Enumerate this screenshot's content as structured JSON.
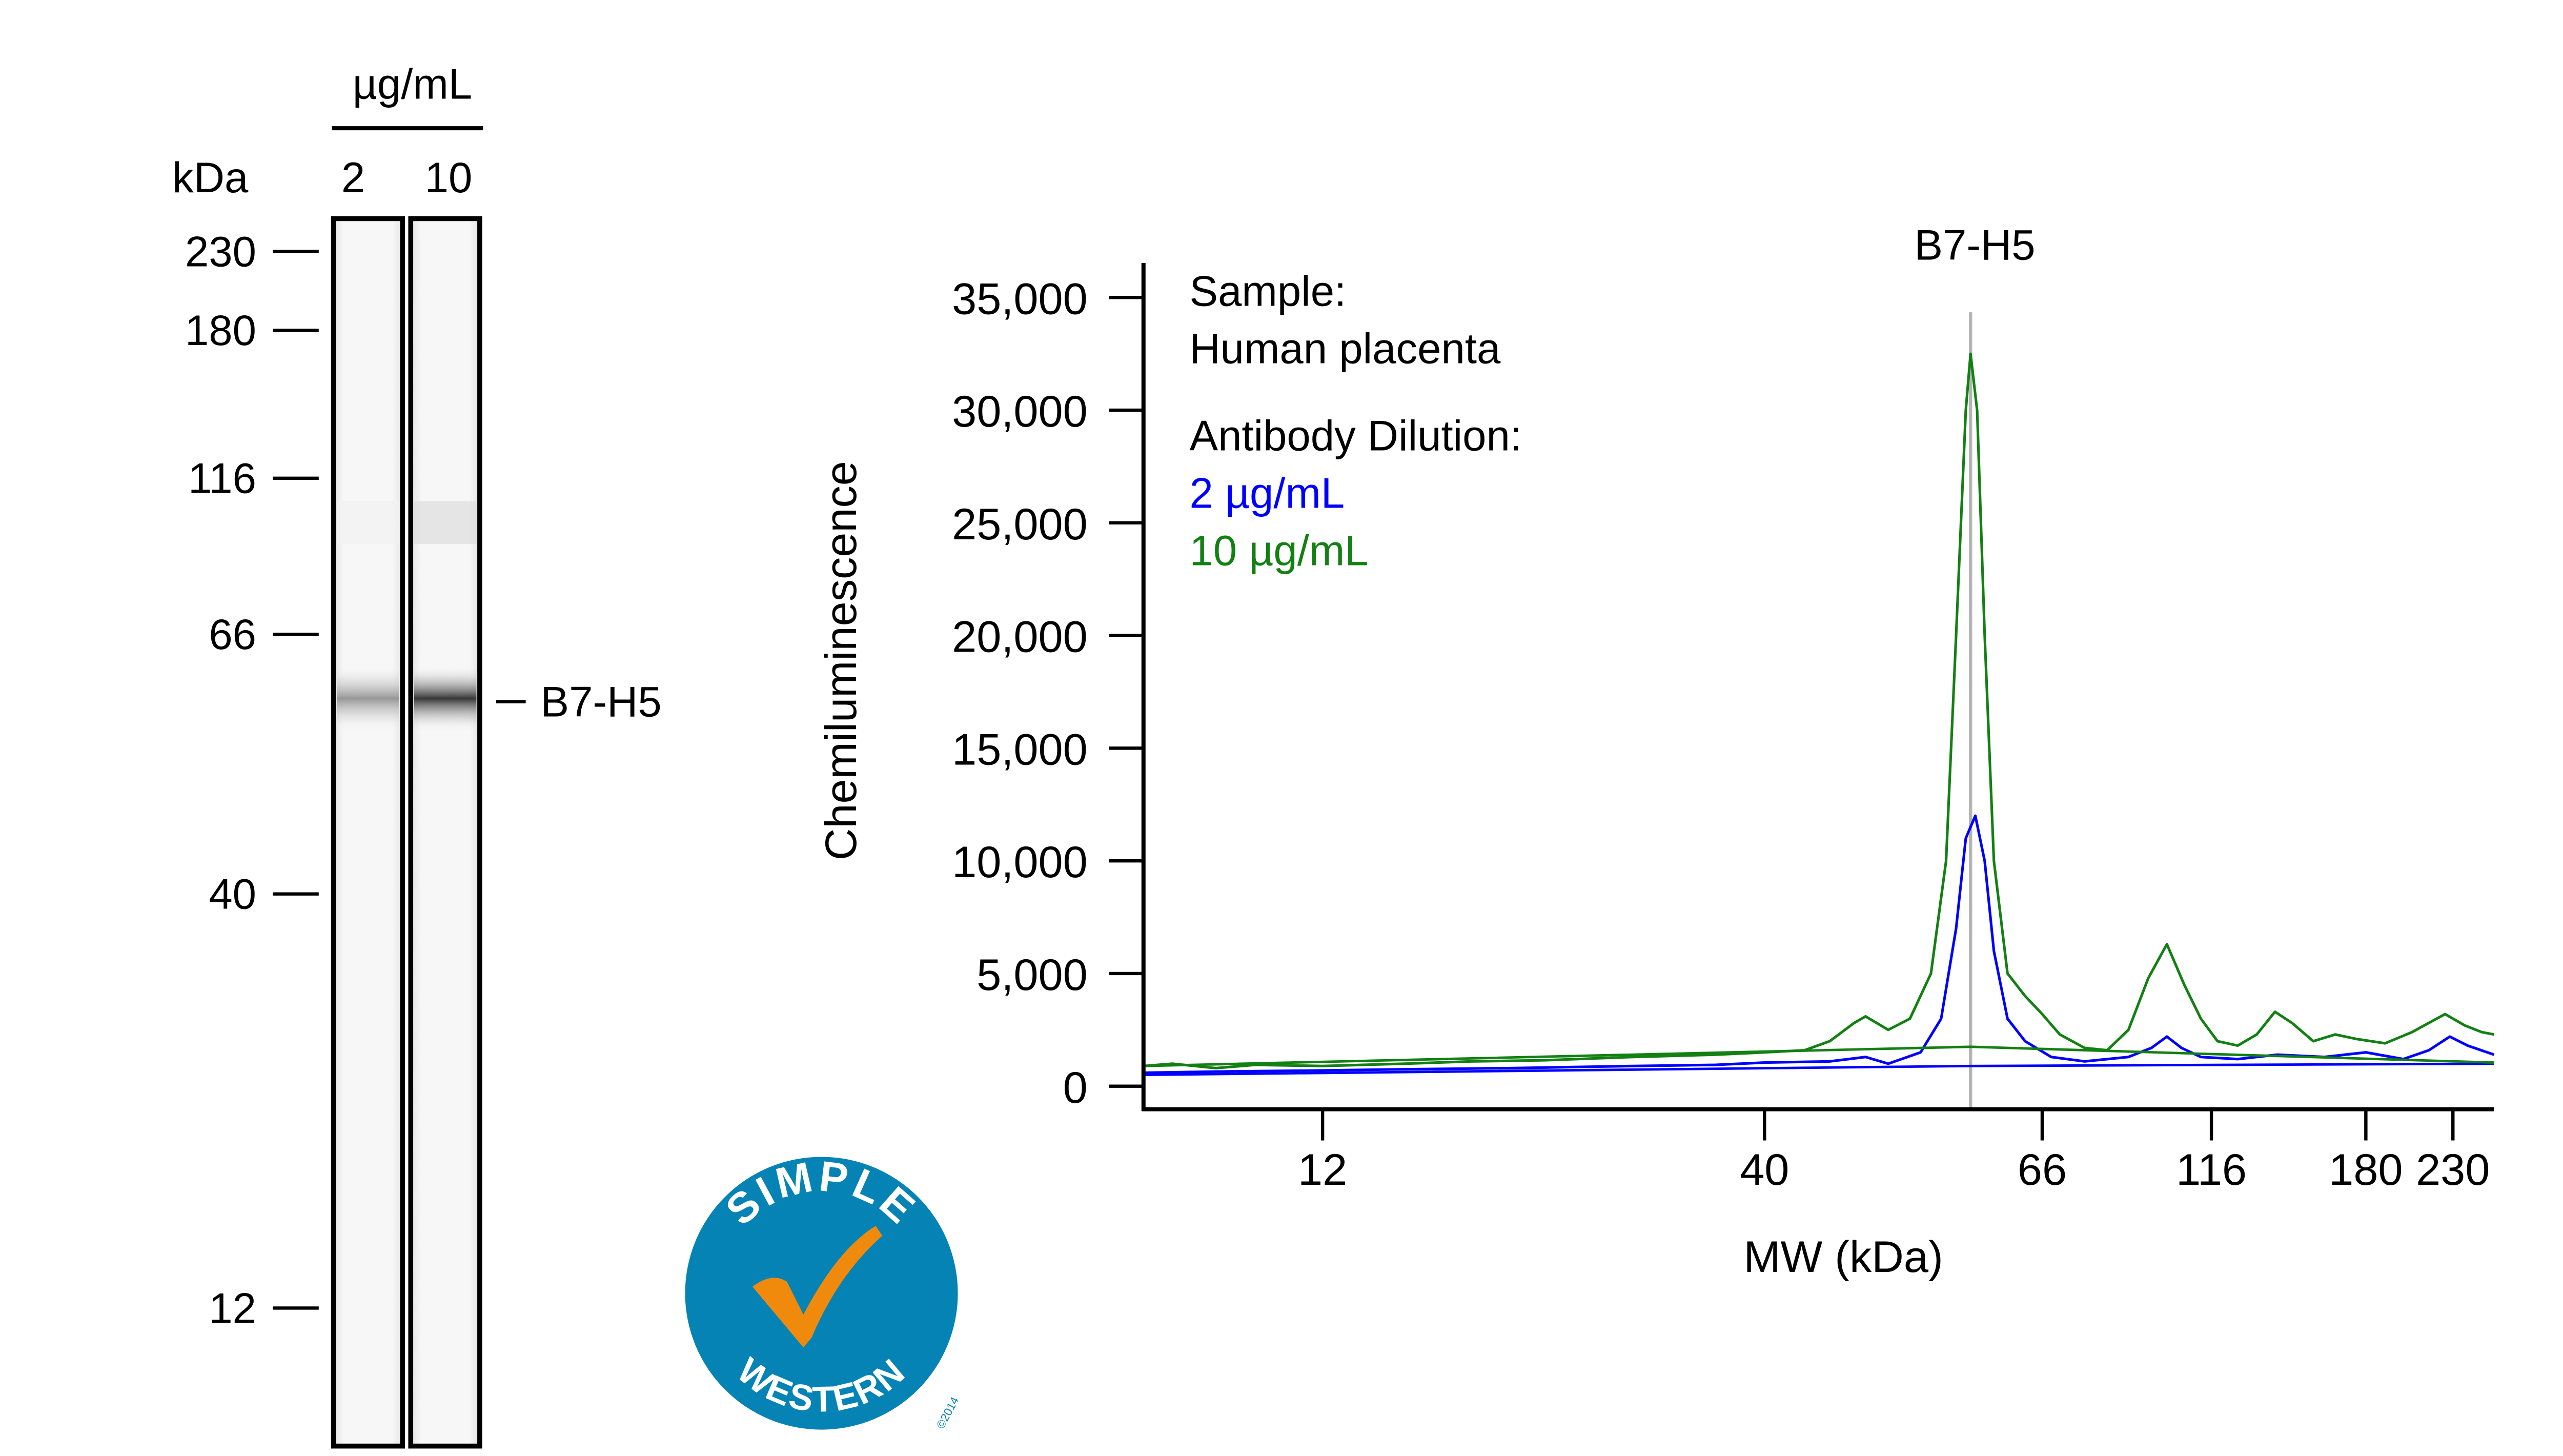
{
  "gel": {
    "unit_label": "µg/mL",
    "kda_label": "kDa",
    "lanes": [
      {
        "label": "2",
        "band_intensity": 0.45,
        "minor_band_intensity": 0.02
      },
      {
        "label": "10",
        "band_intensity": 0.9,
        "minor_band_intensity": 0.12
      }
    ],
    "markers": [
      {
        "label": "230",
        "kda": 230
      },
      {
        "label": "180",
        "kda": 180
      },
      {
        "label": "116",
        "kda": 116
      },
      {
        "label": "66",
        "kda": 66
      },
      {
        "label": "40",
        "kda": 40
      },
      {
        "label": "12",
        "kda": 12
      }
    ],
    "band_label": "B7-H5"
  },
  "logo": {
    "top": "SIMPLE",
    "bottom": "WESTERN",
    "copyright": "©2014",
    "circle_color": "#0583b5",
    "check_color": "#f08a0c"
  },
  "chart_data": {
    "type": "line",
    "title": "B7-H5",
    "xlabel": "MW (kDa)",
    "ylabel": "Chemiluminescence",
    "xscale": "log-like (instrument calibrated)",
    "xlim": [
      7.4,
      259
    ],
    "ylim": [
      0,
      35000
    ],
    "x_ticks": [
      12,
      40,
      66,
      116,
      180,
      230
    ],
    "x_tick_labels": [
      "12",
      "40",
      "66",
      "116",
      "180",
      "230"
    ],
    "y_ticks": [
      0,
      5000,
      10000,
      15000,
      20000,
      25000,
      30000,
      35000
    ],
    "y_tick_labels": [
      "0",
      "5,000",
      "10,000",
      "15,000",
      "20,000",
      "25,000",
      "30,000",
      "35,000"
    ],
    "marker_line_kda": 58,
    "legend": {
      "sample_heading": "Sample:",
      "sample": "Human placenta",
      "dilution_heading": "Antibody Dilution:",
      "placement": "top-left"
    },
    "series": [
      {
        "name": "2 µg/mL",
        "color": "#0000ff",
        "points": [
          [
            7.4,
            600
          ],
          [
            9,
            650
          ],
          [
            12,
            700
          ],
          [
            15,
            750
          ],
          [
            20,
            800
          ],
          [
            28,
            900
          ],
          [
            35,
            950
          ],
          [
            40,
            1050
          ],
          [
            45,
            1100
          ],
          [
            48,
            1300
          ],
          [
            50,
            1000
          ],
          [
            53,
            1500
          ],
          [
            55,
            3000
          ],
          [
            56.5,
            7000
          ],
          [
            57.5,
            11000
          ],
          [
            58.5,
            12000
          ],
          [
            59.5,
            10000
          ],
          [
            60.5,
            6000
          ],
          [
            62,
            3000
          ],
          [
            64,
            2000
          ],
          [
            68,
            1300
          ],
          [
            76,
            1100
          ],
          [
            88,
            1300
          ],
          [
            95,
            1700
          ],
          [
            100,
            2200
          ],
          [
            105,
            1700
          ],
          [
            112,
            1300
          ],
          [
            125,
            1200
          ],
          [
            140,
            1400
          ],
          [
            160,
            1300
          ],
          [
            180,
            1500
          ],
          [
            200,
            1200
          ],
          [
            215,
            1600
          ],
          [
            228,
            2200
          ],
          [
            240,
            1800
          ],
          [
            259,
            1400
          ]
        ],
        "baseline": [
          [
            7.4,
            500
          ],
          [
            58,
            900
          ],
          [
            259,
            1000
          ]
        ]
      },
      {
        "name": "10 µg/mL",
        "color": "#138013",
        "points": [
          [
            7.4,
            900
          ],
          [
            8,
            1000
          ],
          [
            9,
            800
          ],
          [
            10,
            950
          ],
          [
            12,
            900
          ],
          [
            15,
            1000
          ],
          [
            18,
            1100
          ],
          [
            22,
            1150
          ],
          [
            28,
            1300
          ],
          [
            35,
            1400
          ],
          [
            40,
            1500
          ],
          [
            43,
            1600
          ],
          [
            45,
            2000
          ],
          [
            47,
            2800
          ],
          [
            48,
            3100
          ],
          [
            50,
            2500
          ],
          [
            52,
            3000
          ],
          [
            54,
            5000
          ],
          [
            55.5,
            10000
          ],
          [
            56.5,
            20000
          ],
          [
            57.5,
            30000
          ],
          [
            58,
            32500
          ],
          [
            58.7,
            30000
          ],
          [
            59.5,
            20000
          ],
          [
            60.5,
            10000
          ],
          [
            62,
            5000
          ],
          [
            64,
            4000
          ],
          [
            66,
            3200
          ],
          [
            70,
            2300
          ],
          [
            76,
            1700
          ],
          [
            82,
            1600
          ],
          [
            88,
            2500
          ],
          [
            94,
            4800
          ],
          [
            100,
            6300
          ],
          [
            106,
            4500
          ],
          [
            112,
            3000
          ],
          [
            118,
            2000
          ],
          [
            125,
            1800
          ],
          [
            132,
            2300
          ],
          [
            139,
            3300
          ],
          [
            146,
            2800
          ],
          [
            155,
            2000
          ],
          [
            165,
            2300
          ],
          [
            175,
            2100
          ],
          [
            190,
            1900
          ],
          [
            205,
            2400
          ],
          [
            225,
            3200
          ],
          [
            238,
            2700
          ],
          [
            250,
            2400
          ],
          [
            259,
            2300
          ]
        ],
        "baseline": [
          [
            7.4,
            900
          ],
          [
            58,
            1750
          ],
          [
            259,
            1050
          ]
        ]
      }
    ]
  }
}
